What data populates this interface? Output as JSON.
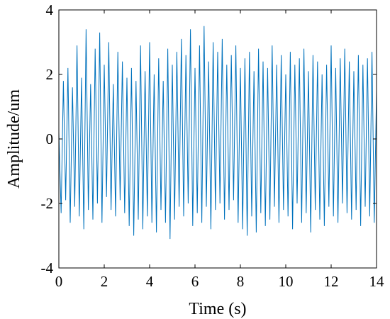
{
  "chart_data": {
    "type": "line",
    "xlabel": "Time (s)",
    "ylabel": "Amplitude/um",
    "xlim": [
      0,
      14
    ],
    "ylim": [
      -4,
      4
    ],
    "xticks": [
      0,
      2,
      4,
      6,
      8,
      10,
      12,
      14
    ],
    "xtick_labels": [
      "0",
      "2",
      "4",
      "6",
      "8",
      "10",
      "12",
      "14"
    ],
    "yticks": [
      -4,
      -2,
      0,
      2,
      4
    ],
    "ytick_labels": [
      "-4",
      "-2",
      "0",
      "2",
      "4"
    ],
    "grid": false,
    "line_color": "#0072BD",
    "series": [
      {
        "x": [
          0.0,
          0.1,
          0.2,
          0.3,
          0.4,
          0.5,
          0.6,
          0.7,
          0.8,
          0.9,
          1.0,
          1.1,
          1.2,
          1.3,
          1.4,
          1.5,
          1.6,
          1.7,
          1.8,
          1.9,
          2.0,
          2.1,
          2.2,
          2.3,
          2.4,
          2.5,
          2.6,
          2.7,
          2.8,
          2.9,
          3.0,
          3.1,
          3.2,
          3.3,
          3.4,
          3.5,
          3.6,
          3.7,
          3.8,
          3.9,
          4.0,
          4.1,
          4.2,
          4.3,
          4.4,
          4.5,
          4.6,
          4.7,
          4.8,
          4.9,
          5.0,
          5.1,
          5.2,
          5.3,
          5.4,
          5.5,
          5.6,
          5.7,
          5.8,
          5.9,
          6.0,
          6.1,
          6.2,
          6.3,
          6.4,
          6.5,
          6.6,
          6.7,
          6.8,
          6.9,
          7.0,
          7.1,
          7.2,
          7.3,
          7.4,
          7.5,
          7.6,
          7.7,
          7.8,
          7.9,
          8.0,
          8.1,
          8.2,
          8.3,
          8.4,
          8.5,
          8.6,
          8.7,
          8.8,
          8.9,
          9.0,
          9.1,
          9.2,
          9.3,
          9.4,
          9.5,
          9.6,
          9.7,
          9.8,
          9.9,
          10.0,
          10.1,
          10.2,
          10.3,
          10.4,
          10.5,
          10.6,
          10.7,
          10.8,
          10.9,
          11.0,
          11.1,
          11.2,
          11.3,
          11.4,
          11.5,
          11.6,
          11.7,
          11.8,
          11.9,
          12.0,
          12.1,
          12.2,
          12.3,
          12.4,
          12.5,
          12.6,
          12.7,
          12.8,
          12.9,
          13.0,
          13.1,
          13.2,
          13.3,
          13.4,
          13.5,
          13.6,
          13.7,
          13.8,
          13.9,
          14.0
        ],
        "values": [
          0.2,
          -2.3,
          1.8,
          -1.9,
          2.2,
          -2.6,
          1.6,
          -2.1,
          2.9,
          -2.4,
          1.9,
          -2.8,
          3.4,
          -2.2,
          1.7,
          -2.5,
          2.8,
          -2.0,
          3.3,
          -2.6,
          2.3,
          -1.8,
          3.0,
          -2.2,
          1.7,
          -2.4,
          2.7,
          -1.9,
          2.4,
          -2.3,
          1.9,
          -2.7,
          2.2,
          -3.0,
          1.8,
          -2.5,
          2.9,
          -2.8,
          2.1,
          -2.4,
          3.0,
          -2.6,
          2.0,
          -2.9,
          2.5,
          -2.2,
          1.8,
          -2.6,
          2.8,
          -3.1,
          2.3,
          -2.5,
          2.7,
          -2.1,
          3.1,
          -2.4,
          2.6,
          -2.0,
          3.4,
          -2.7,
          2.2,
          -2.3,
          2.9,
          -2.6,
          3.5,
          -2.1,
          2.4,
          -2.8,
          3.0,
          -2.2,
          2.7,
          -2.0,
          3.1,
          -2.5,
          2.3,
          -2.2,
          2.6,
          -1.9,
          2.9,
          -2.6,
          2.2,
          -2.8,
          2.5,
          -3.0,
          2.7,
          -2.4,
          2.1,
          -2.9,
          2.8,
          -2.3,
          2.4,
          -2.7,
          2.2,
          -2.5,
          2.9,
          -2.1,
          2.3,
          -2.6,
          2.6,
          -2.2,
          2.0,
          -2.4,
          2.7,
          -2.8,
          2.3,
          -2.0,
          2.5,
          -2.6,
          2.8,
          -2.3,
          2.1,
          -2.9,
          2.6,
          -2.2,
          2.4,
          -2.5,
          2.0,
          -2.7,
          2.3,
          -2.1,
          2.9,
          -2.4,
          2.2,
          -2.6,
          2.5,
          -2.0,
          2.8,
          -2.3,
          2.4,
          -2.5,
          2.1,
          -2.2,
          2.6,
          -2.7,
          2.3,
          -2.1,
          2.5,
          -2.4,
          2.7,
          -2.6,
          1.5
        ]
      }
    ]
  }
}
